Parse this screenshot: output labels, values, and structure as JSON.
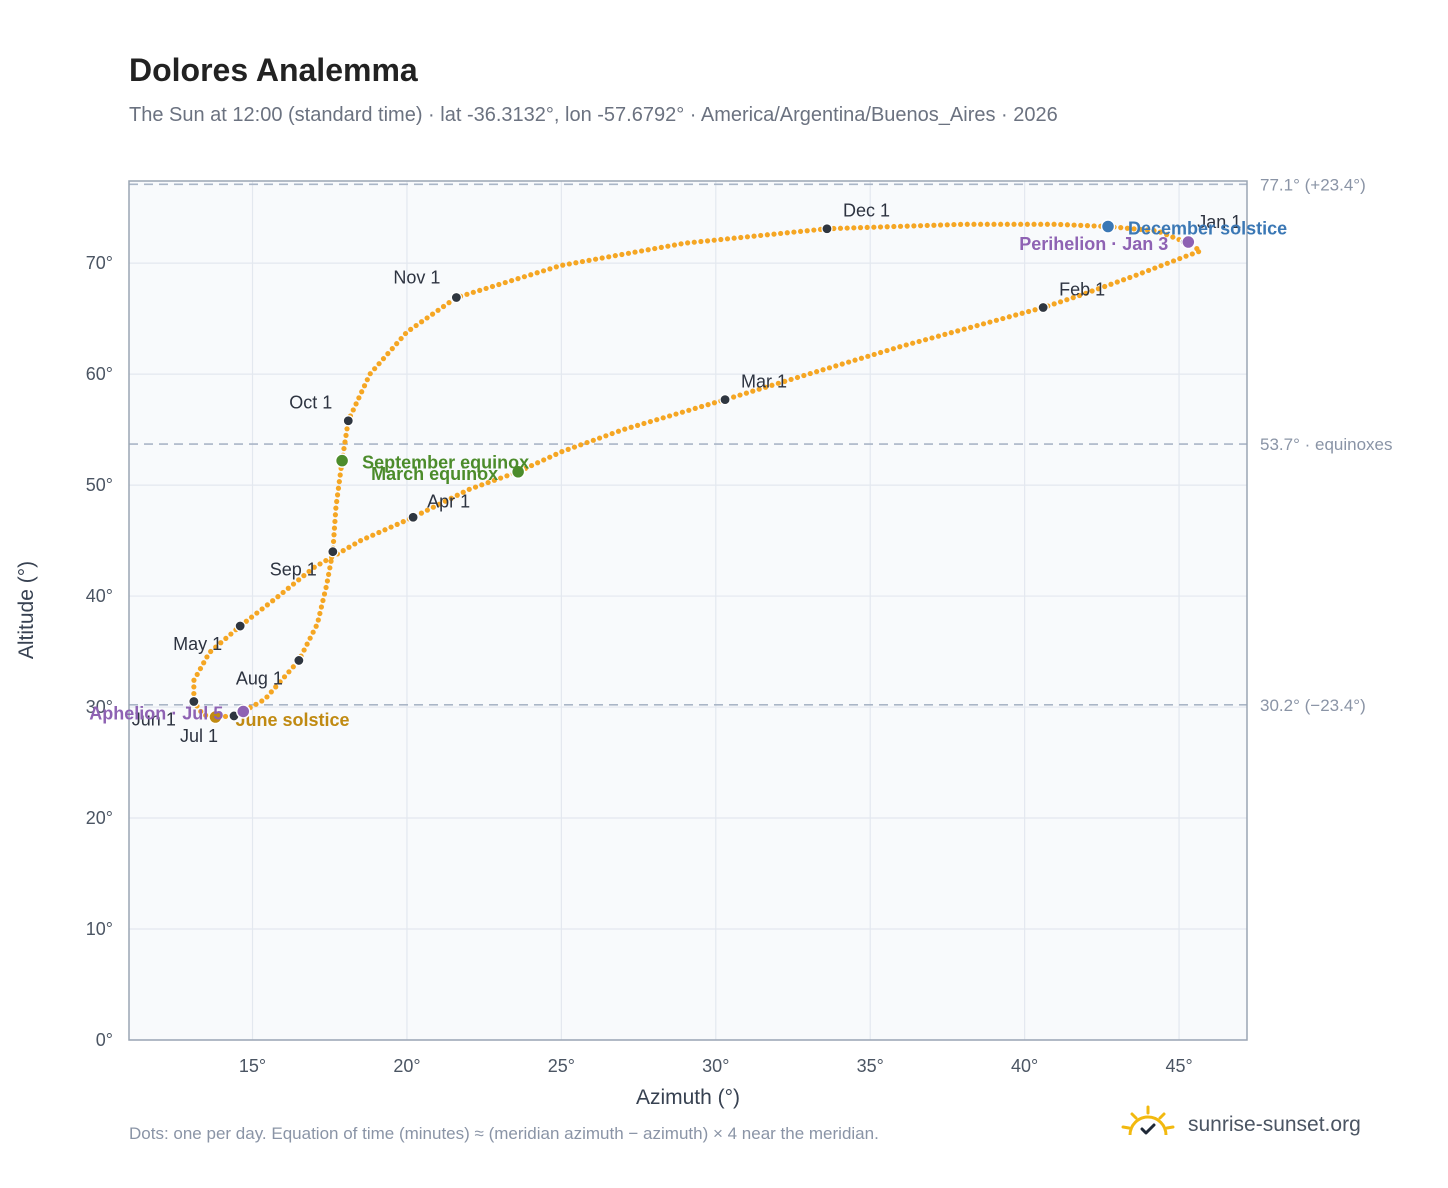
{
  "title": "Dolores Analemma",
  "subtitle": "The Sun at 12:00 (standard time) · lat -36.3132°, lon -57.6792° · America/Argentina/Buenos_Aires · 2026",
  "footnote": "Dots: one per day. Equation of time (minutes) ≈ (meridian azimuth − azimuth) × 4 near the meridian.",
  "brand": {
    "name": "sunrise-sunset.org",
    "icon": "sun-logo-icon"
  },
  "colors": {
    "curve": "#f5a623",
    "month_marker": "#2f3640",
    "equinox": "#4c8c2b",
    "december_solstice": "#3b78b5",
    "june_solstice": "#c08a12",
    "apsis": "#8e62b3",
    "reference_line": "#aab6c7",
    "plot_background": "#f8fafc"
  },
  "chart_data": {
    "type": "scatter",
    "xlabel": "Azimuth (°)",
    "ylabel": "Altitude (°)",
    "xlim": [
      11,
      47.2
    ],
    "ylim": [
      0,
      77.4
    ],
    "x_ticks": [
      15,
      20,
      25,
      30,
      35,
      40,
      45
    ],
    "x_tick_labels": [
      "15°",
      "20°",
      "25°",
      "30°",
      "35°",
      "40°",
      "45°"
    ],
    "y_ticks": [
      0,
      10,
      20,
      30,
      40,
      50,
      60,
      70
    ],
    "y_tick_labels": [
      "0°",
      "10°",
      "20°",
      "30°",
      "40°",
      "50°",
      "60°",
      "70°"
    ],
    "grid": true,
    "reference_lines": [
      {
        "y": 77.1,
        "label": "77.1° (+23.4°)"
      },
      {
        "y": 53.7,
        "label": "53.7° · equinoxes"
      },
      {
        "y": 30.2,
        "label": "30.2° (−23.4°)"
      }
    ],
    "month_points": [
      {
        "label": "Jan 1",
        "x": 45.2,
        "y": 71.9
      },
      {
        "label": "Feb 1",
        "x": 40.6,
        "y": 66.0
      },
      {
        "label": "Mar 1",
        "x": 30.3,
        "y": 57.7
      },
      {
        "label": "Apr 1",
        "x": 20.2,
        "y": 47.1
      },
      {
        "label": "May 1",
        "x": 14.6,
        "y": 37.3
      },
      {
        "label": "Jun 1",
        "x": 13.1,
        "y": 30.5
      },
      {
        "label": "Jul 1",
        "x": 14.4,
        "y": 29.2
      },
      {
        "label": "Aug 1",
        "x": 16.5,
        "y": 34.2
      },
      {
        "label": "Sep 1",
        "x": 17.6,
        "y": 44.0
      },
      {
        "label": "Oct 1",
        "x": 18.1,
        "y": 55.8
      },
      {
        "label": "Nov 1",
        "x": 21.6,
        "y": 66.9
      },
      {
        "label": "Dec 1",
        "x": 33.6,
        "y": 73.1
      }
    ],
    "events": [
      {
        "label": "December solstice",
        "x": 42.7,
        "y": 73.3,
        "kind": "december_solstice"
      },
      {
        "label": "Perihelion · Jan 3",
        "x": 45.3,
        "y": 71.9,
        "kind": "apsis"
      },
      {
        "label": "March equinox",
        "x": 23.6,
        "y": 51.2,
        "kind": "equinox"
      },
      {
        "label": "September equinox",
        "x": 17.9,
        "y": 52.2,
        "kind": "equinox"
      },
      {
        "label": "June solstice",
        "x": 13.8,
        "y": 29.1,
        "kind": "june_solstice"
      },
      {
        "label": "Aphelion · Jul 5",
        "x": 14.7,
        "y": 29.6,
        "kind": "apsis"
      }
    ],
    "series": [
      {
        "marker": "dot, one per day",
        "path": [
          [
            45.2,
            71.9
          ],
          [
            45.4,
            71.6
          ],
          [
            45.7,
            71.1
          ],
          [
            45.2,
            70.6
          ],
          [
            43.6,
            68.9
          ],
          [
            41.8,
            67.1
          ],
          [
            40.6,
            66.0
          ],
          [
            36.0,
            62.5
          ],
          [
            33.0,
            60.0
          ],
          [
            30.3,
            57.7
          ],
          [
            27.0,
            55.0
          ],
          [
            25.0,
            53.0
          ],
          [
            23.6,
            51.2
          ],
          [
            22.0,
            49.6
          ],
          [
            20.2,
            47.1
          ],
          [
            18.5,
            45.0
          ],
          [
            17.0,
            42.6
          ],
          [
            15.8,
            39.9
          ],
          [
            14.6,
            37.3
          ],
          [
            13.6,
            34.9
          ],
          [
            13.1,
            32.4
          ],
          [
            13.1,
            30.5
          ],
          [
            13.4,
            29.3
          ],
          [
            13.8,
            29.1
          ],
          [
            14.4,
            29.2
          ],
          [
            14.7,
            29.6
          ],
          [
            15.4,
            30.7
          ],
          [
            16.5,
            34.2
          ],
          [
            17.1,
            37.5
          ],
          [
            17.4,
            41.0
          ],
          [
            17.6,
            44.0
          ],
          [
            17.7,
            48.0
          ],
          [
            17.9,
            52.2
          ],
          [
            18.1,
            55.8
          ],
          [
            18.8,
            60.0
          ],
          [
            20.0,
            63.8
          ],
          [
            21.6,
            66.9
          ],
          [
            25.0,
            69.8
          ],
          [
            29.0,
            71.8
          ],
          [
            33.6,
            73.1
          ],
          [
            38.0,
            73.5
          ],
          [
            41.0,
            73.5
          ],
          [
            42.7,
            73.3
          ],
          [
            44.3,
            72.9
          ],
          [
            45.2,
            71.9
          ]
        ]
      }
    ]
  }
}
